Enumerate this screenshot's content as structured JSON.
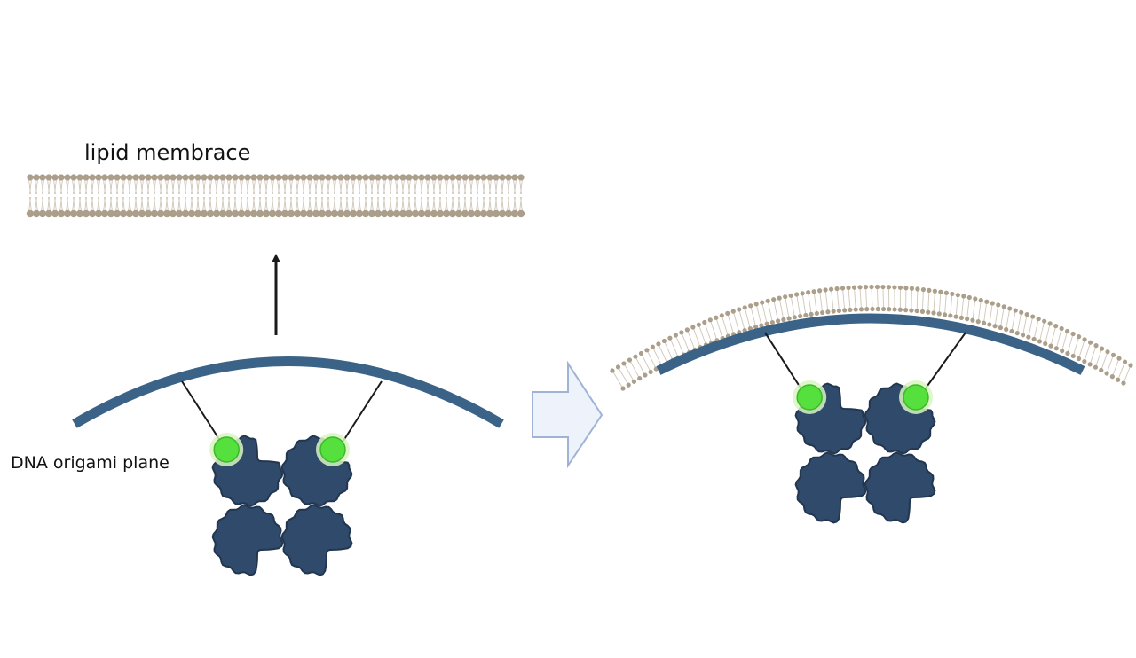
{
  "labels": {
    "membrane": "lipid membrace",
    "origami": "DNA origami plane"
  },
  "colors": {
    "origami": "#3a6387",
    "protein_fill": "#2f4a6b",
    "protein_stroke": "#22364f",
    "fluorophore": "#55e03d",
    "fluorophore_glow": "#d8f5c0",
    "lipid_head": "#ab9e8a",
    "lipid_tail": "#cfc6b8",
    "arrow_fill": "#eef3fb",
    "arrow_stroke": "#9fb3d6",
    "tether": "#1a1a1a"
  }
}
